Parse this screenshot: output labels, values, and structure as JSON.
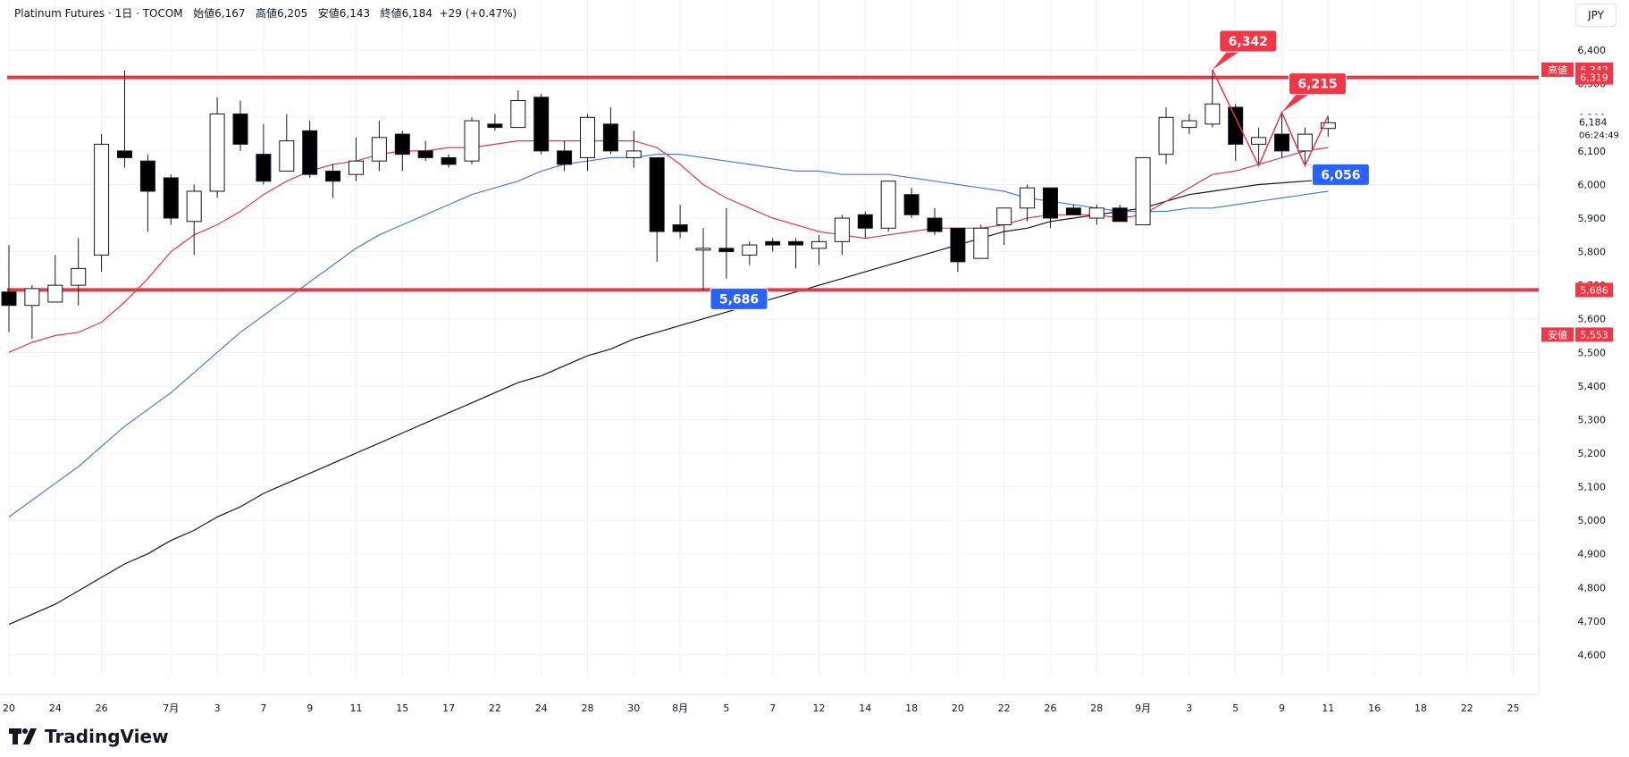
{
  "header": {
    "symbol": "Platinum Futures",
    "interval": "1日",
    "exchange": "TOCOM",
    "open_label": "始値",
    "open": "6,167",
    "high_label": "高値",
    "high": "6,205",
    "low_label": "安値",
    "low": "6,143",
    "close_label": "終値",
    "close": "6,184",
    "change": "+29 (+0.47%)"
  },
  "currency": "JPY",
  "brand": "TradingView",
  "colors": {
    "resistance": "#e03a4a",
    "ma_fast": "#e03a4a",
    "ma_mid": "#4a7fd4",
    "ma_slow": "#131722",
    "label_red": "#f23645",
    "label_blue": "#2962ff"
  },
  "chart_data": {
    "type": "candlestick",
    "title": "",
    "xlabel": "",
    "ylabel": "",
    "ylim": [
      4540,
      6475
    ],
    "y_ticks": [
      4600,
      4700,
      4800,
      4900,
      5000,
      5100,
      5200,
      5300,
      5400,
      5500,
      5600,
      5700,
      5800,
      5900,
      6000,
      6100,
      6200,
      6300,
      6400
    ],
    "y_tick_labels": [
      "4,600",
      "4,700",
      "4,800",
      "4,900",
      "5,000",
      "5,100",
      "5,200",
      "5,300",
      "5,400",
      "5,500",
      "5,600",
      "5,700",
      "5,800",
      "5,900",
      "6,000",
      "6,100",
      "6,200",
      "6,300",
      "6,400"
    ],
    "x_ticks": [
      {
        "slot": 0,
        "label": "20"
      },
      {
        "slot": 2,
        "label": "24"
      },
      {
        "slot": 4,
        "label": "26"
      },
      {
        "slot": 7,
        "label": "7月"
      },
      {
        "slot": 9,
        "label": "3"
      },
      {
        "slot": 11,
        "label": "7"
      },
      {
        "slot": 13,
        "label": "9"
      },
      {
        "slot": 15,
        "label": "11"
      },
      {
        "slot": 17,
        "label": "15"
      },
      {
        "slot": 19,
        "label": "17"
      },
      {
        "slot": 21,
        "label": "22"
      },
      {
        "slot": 23,
        "label": "24"
      },
      {
        "slot": 25,
        "label": "28"
      },
      {
        "slot": 27,
        "label": "30"
      },
      {
        "slot": 29,
        "label": "8月"
      },
      {
        "slot": 31,
        "label": "5"
      },
      {
        "slot": 33,
        "label": "7"
      },
      {
        "slot": 35,
        "label": "12"
      },
      {
        "slot": 37,
        "label": "14"
      },
      {
        "slot": 39,
        "label": "18"
      },
      {
        "slot": 41,
        "label": "20"
      },
      {
        "slot": 43,
        "label": "22"
      },
      {
        "slot": 45,
        "label": "26"
      },
      {
        "slot": 47,
        "label": "28"
      },
      {
        "slot": 49,
        "label": "9月"
      },
      {
        "slot": 51,
        "label": "3"
      },
      {
        "slot": 53,
        "label": "5"
      },
      {
        "slot": 55,
        "label": "9"
      },
      {
        "slot": 57,
        "label": "11"
      },
      {
        "slot": 59,
        "label": "16"
      },
      {
        "slot": 61,
        "label": "18"
      },
      {
        "slot": 63,
        "label": "22"
      },
      {
        "slot": 65,
        "label": "25"
      }
    ],
    "candles": [
      {
        "o": 5680,
        "h": 5820,
        "l": 5560,
        "c": 5640
      },
      {
        "o": 5640,
        "h": 5700,
        "l": 5540,
        "c": 5690
      },
      {
        "o": 5650,
        "h": 5790,
        "l": 5650,
        "c": 5700
      },
      {
        "o": 5700,
        "h": 5840,
        "l": 5640,
        "c": 5750
      },
      {
        "o": 5790,
        "h": 6150,
        "l": 5740,
        "c": 6120
      },
      {
        "o": 6100,
        "h": 6340,
        "l": 6050,
        "c": 6080
      },
      {
        "o": 6070,
        "h": 6090,
        "l": 5860,
        "c": 5980
      },
      {
        "o": 6020,
        "h": 6030,
        "l": 5880,
        "c": 5900
      },
      {
        "o": 5890,
        "h": 6000,
        "l": 5790,
        "c": 5980
      },
      {
        "o": 5980,
        "h": 6260,
        "l": 5960,
        "c": 6210
      },
      {
        "o": 6210,
        "h": 6250,
        "l": 6100,
        "c": 6120
      },
      {
        "o": 6090,
        "h": 6180,
        "l": 6000,
        "c": 6010
      },
      {
        "o": 6040,
        "h": 6210,
        "l": 6040,
        "c": 6130
      },
      {
        "o": 6160,
        "h": 6190,
        "l": 6020,
        "c": 6030
      },
      {
        "o": 6040,
        "h": 6060,
        "l": 5960,
        "c": 6010
      },
      {
        "o": 6030,
        "h": 6140,
        "l": 6010,
        "c": 6070
      },
      {
        "o": 6070,
        "h": 6190,
        "l": 6040,
        "c": 6140
      },
      {
        "o": 6150,
        "h": 6160,
        "l": 6040,
        "c": 6090
      },
      {
        "o": 6100,
        "h": 6130,
        "l": 6070,
        "c": 6080
      },
      {
        "o": 6080,
        "h": 6090,
        "l": 6050,
        "c": 6060
      },
      {
        "o": 6070,
        "h": 6200,
        "l": 6060,
        "c": 6190
      },
      {
        "o": 6180,
        "h": 6210,
        "l": 6160,
        "c": 6170
      },
      {
        "o": 6170,
        "h": 6280,
        "l": 6170,
        "c": 6250
      },
      {
        "o": 6260,
        "h": 6270,
        "l": 6090,
        "c": 6100
      },
      {
        "o": 6100,
        "h": 6130,
        "l": 6040,
        "c": 6060
      },
      {
        "o": 6080,
        "h": 6210,
        "l": 6040,
        "c": 6200
      },
      {
        "o": 6180,
        "h": 6230,
        "l": 6090,
        "c": 6100
      },
      {
        "o": 6080,
        "h": 6160,
        "l": 6050,
        "c": 6100
      },
      {
        "o": 6080,
        "h": 6080,
        "l": 5770,
        "c": 5860
      },
      {
        "o": 5880,
        "h": 5940,
        "l": 5840,
        "c": 5860
      },
      {
        "o": 5810,
        "h": 5870,
        "l": 5686,
        "c": 5810
      },
      {
        "o": 5810,
        "h": 5930,
        "l": 5720,
        "c": 5800
      },
      {
        "o": 5790,
        "h": 5830,
        "l": 5760,
        "c": 5820
      },
      {
        "o": 5830,
        "h": 5840,
        "l": 5800,
        "c": 5820
      },
      {
        "o": 5830,
        "h": 5840,
        "l": 5750,
        "c": 5820
      },
      {
        "o": 5810,
        "h": 5850,
        "l": 5760,
        "c": 5830
      },
      {
        "o": 5830,
        "h": 5910,
        "l": 5790,
        "c": 5900
      },
      {
        "o": 5910,
        "h": 5920,
        "l": 5840,
        "c": 5870
      },
      {
        "o": 5870,
        "h": 6010,
        "l": 5860,
        "c": 6010
      },
      {
        "o": 5970,
        "h": 5990,
        "l": 5900,
        "c": 5910
      },
      {
        "o": 5900,
        "h": 5930,
        "l": 5850,
        "c": 5860
      },
      {
        "o": 5870,
        "h": 5870,
        "l": 5740,
        "c": 5770
      },
      {
        "o": 5780,
        "h": 5880,
        "l": 5780,
        "c": 5870
      },
      {
        "o": 5880,
        "h": 5930,
        "l": 5820,
        "c": 5930
      },
      {
        "o": 5930,
        "h": 6000,
        "l": 5890,
        "c": 5990
      },
      {
        "o": 5990,
        "h": 5990,
        "l": 5870,
        "c": 5900
      },
      {
        "o": 5930,
        "h": 5940,
        "l": 5910,
        "c": 5910
      },
      {
        "o": 5900,
        "h": 5940,
        "l": 5880,
        "c": 5930
      },
      {
        "o": 5930,
        "h": 5940,
        "l": 5890,
        "c": 5890
      },
      {
        "o": 5880,
        "h": 6080,
        "l": 5880,
        "c": 6080
      },
      {
        "o": 6090,
        "h": 6230,
        "l": 6060,
        "c": 6200
      },
      {
        "o": 6170,
        "h": 6210,
        "l": 6150,
        "c": 6190
      },
      {
        "o": 6180,
        "h": 6342,
        "l": 6170,
        "c": 6240
      },
      {
        "o": 6230,
        "h": 6240,
        "l": 6070,
        "c": 6120
      },
      {
        "o": 6120,
        "h": 6170,
        "l": 6056,
        "c": 6140
      },
      {
        "o": 6150,
        "h": 6215,
        "l": 6080,
        "c": 6100
      },
      {
        "o": 6100,
        "h": 6170,
        "l": 6056,
        "c": 6150
      },
      {
        "o": 6167,
        "h": 6205,
        "l": 6143,
        "c": 6184
      }
    ],
    "ma_fast": [
      5500,
      5530,
      5550,
      5560,
      5590,
      5650,
      5720,
      5800,
      5850,
      5880,
      5920,
      5970,
      6010,
      6040,
      6060,
      6070,
      6090,
      6100,
      6100,
      6110,
      6110,
      6120,
      6130,
      6130,
      6130,
      6130,
      6130,
      6130,
      6110,
      6060,
      6000,
      5960,
      5930,
      5900,
      5880,
      5860,
      5850,
      5840,
      5850,
      5860,
      5870,
      5870,
      5870,
      5880,
      5900,
      5910,
      5910,
      5910,
      5900,
      5910,
      5950,
      5990,
      6030,
      6040,
      6060,
      6080,
      6100,
      6110
    ],
    "ma_mid": [
      5010,
      5060,
      5110,
      5160,
      5220,
      5280,
      5330,
      5380,
      5440,
      5500,
      5560,
      5610,
      5660,
      5710,
      5760,
      5810,
      5850,
      5880,
      5910,
      5940,
      5970,
      5990,
      6010,
      6040,
      6060,
      6070,
      6080,
      6080,
      6090,
      6090,
      6080,
      6070,
      6060,
      6050,
      6040,
      6040,
      6030,
      6030,
      6030,
      6020,
      6010,
      6000,
      5990,
      5980,
      5960,
      5950,
      5940,
      5930,
      5920,
      5920,
      5920,
      5930,
      5930,
      5940,
      5950,
      5960,
      5970,
      5980
    ],
    "ma_slow": [
      4690,
      4720,
      4750,
      4790,
      4830,
      4870,
      4900,
      4940,
      4970,
      5010,
      5040,
      5080,
      5110,
      5140,
      5170,
      5200,
      5230,
      5260,
      5290,
      5320,
      5350,
      5380,
      5410,
      5430,
      5460,
      5490,
      5510,
      5540,
      5560,
      5580,
      5600,
      5620,
      5640,
      5660,
      5680,
      5700,
      5720,
      5740,
      5760,
      5780,
      5800,
      5820,
      5840,
      5860,
      5870,
      5890,
      5900,
      5910,
      5920,
      5930,
      5950,
      5970,
      5980,
      5990,
      6000,
      6005,
      6010,
      6015
    ],
    "zigzag": [
      {
        "slot": 52,
        "value": 6342
      },
      {
        "slot": 54,
        "value": 6056
      },
      {
        "slot": 55,
        "value": 6215
      },
      {
        "slot": 56,
        "value": 6056
      },
      {
        "slot": 57,
        "value": 6205
      }
    ],
    "resistance_levels": [
      {
        "value": 6319,
        "label": "6,319"
      },
      {
        "value": 5686,
        "label": "5,686"
      }
    ],
    "callouts": [
      {
        "text": "6,342",
        "slot": 52,
        "value": 6342,
        "kind": "high"
      },
      {
        "text": "6,215",
        "slot": 55,
        "value": 6215,
        "kind": "high"
      },
      {
        "text": "6,056",
        "slot": 56,
        "value": 6056,
        "kind": "low"
      },
      {
        "text": "5,686",
        "slot": 30,
        "value": 5686,
        "kind": "low"
      }
    ],
    "price_axis_labels": [
      {
        "title": "高値",
        "text": "6,342",
        "value": 6342
      },
      {
        "title": "",
        "text": "6,319",
        "value": 6319
      },
      {
        "title": "",
        "text": "5,686",
        "value": 5686
      },
      {
        "title": "安値",
        "text": "5,553",
        "value": 5553
      }
    ],
    "last_price": {
      "value": 6184,
      "text": "6,184",
      "countdown": "06:24:49"
    }
  }
}
